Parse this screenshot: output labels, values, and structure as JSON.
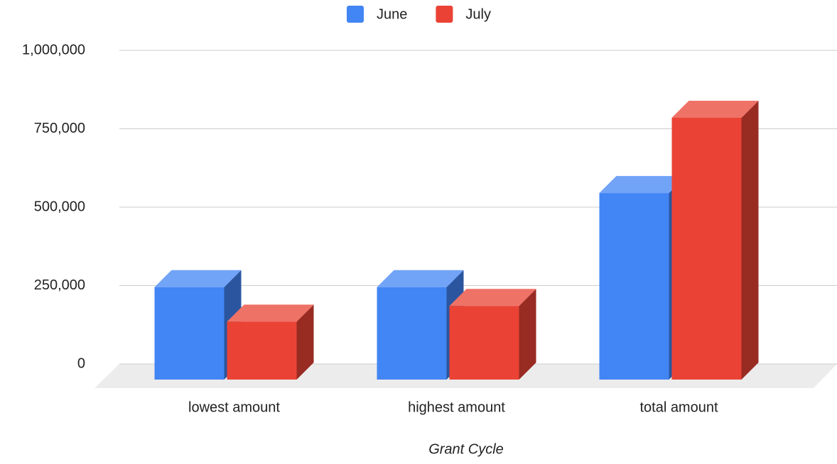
{
  "chart_data": {
    "type": "bar3d",
    "x_label": "Grant Cycle",
    "categories": [
      "lowest amount",
      "highest amount",
      "total amount"
    ],
    "series": [
      {
        "name": "June",
        "color": "#4285f4",
        "values": [
          245000,
          245000,
          545000
        ]
      },
      {
        "name": "July",
        "color": "#ea4335",
        "values": [
          135000,
          185000,
          785000
        ]
      }
    ],
    "ylim": [
      0,
      1000000
    ],
    "yticks": [
      0,
      {
        "value": 250000,
        "label": "250,000"
      },
      {
        "value": 500000,
        "label": "500,000"
      },
      {
        "value": 750000,
        "label": "750,000"
      },
      {
        "value": 1000000,
        "label": "1,000,000"
      }
    ],
    "grid": true,
    "legend": "top"
  }
}
